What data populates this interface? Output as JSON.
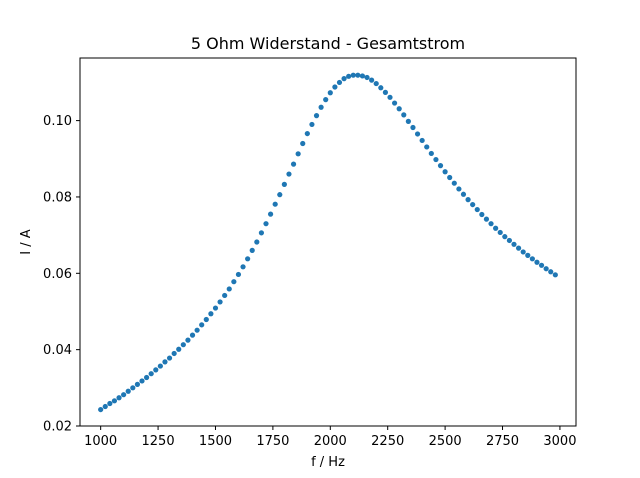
{
  "chart_data": {
    "type": "scatter",
    "title": "5 Ohm Widerstand - Gesamtstrom",
    "xlabel": "f / Hz",
    "ylabel": "I / A",
    "xlim": [
      910,
      3070
    ],
    "ylim": [
      0.02,
      0.1164
    ],
    "xticks": [
      1000,
      1250,
      1500,
      1750,
      2000,
      2250,
      2500,
      2750,
      3000
    ],
    "yticks": [
      0.02,
      0.04,
      0.06,
      0.08,
      0.1
    ],
    "xtick_labels": [
      "1000",
      "1250",
      "1500",
      "1750",
      "2000",
      "2250",
      "2500",
      "2750",
      "3000"
    ],
    "ytick_labels": [
      "0.02",
      "0.04",
      "0.06",
      "0.08",
      "0.10"
    ],
    "grid": false,
    "marker_color": "#1f77b4",
    "series": [
      {
        "x": [
          1000,
          1020,
          1040,
          1060,
          1080,
          1100,
          1120,
          1140,
          1160,
          1180,
          1200,
          1220,
          1240,
          1260,
          1280,
          1300,
          1320,
          1340,
          1360,
          1380,
          1400,
          1420,
          1440,
          1460,
          1480,
          1500,
          1520,
          1540,
          1560,
          1580,
          1600,
          1620,
          1640,
          1660,
          1680,
          1700,
          1720,
          1740,
          1760,
          1780,
          1800,
          1820,
          1840,
          1860,
          1880,
          1900,
          1920,
          1940,
          1960,
          1980,
          2000,
          2020,
          2040,
          2060,
          2080,
          2100,
          2120,
          2140,
          2160,
          2180,
          2200,
          2220,
          2240,
          2260,
          2280,
          2300,
          2320,
          2340,
          2360,
          2380,
          2400,
          2420,
          2440,
          2460,
          2480,
          2500,
          2520,
          2540,
          2560,
          2580,
          2600,
          2620,
          2640,
          2660,
          2680,
          2700,
          2720,
          2740,
          2760,
          2780,
          2800,
          2820,
          2840,
          2860,
          2880,
          2900,
          2920,
          2940,
          2960,
          2980
        ],
        "y": [
          0.0243,
          0.0251,
          0.0259,
          0.0266,
          0.0274,
          0.0282,
          0.0291,
          0.03,
          0.0309,
          0.0318,
          0.0327,
          0.0337,
          0.0347,
          0.0357,
          0.0368,
          0.0378,
          0.039,
          0.0401,
          0.0413,
          0.0425,
          0.0438,
          0.0451,
          0.0465,
          0.0479,
          0.0494,
          0.0509,
          0.0525,
          0.0542,
          0.0559,
          0.0578,
          0.0597,
          0.0617,
          0.0638,
          0.066,
          0.0682,
          0.0706,
          0.073,
          0.0755,
          0.0781,
          0.0806,
          0.0833,
          0.086,
          0.0886,
          0.0913,
          0.094,
          0.0966,
          0.099,
          0.1013,
          0.1035,
          0.1055,
          0.1073,
          0.1088,
          0.11,
          0.111,
          0.1116,
          0.1119,
          0.1119,
          0.1117,
          0.1113,
          0.1106,
          0.1097,
          0.1086,
          0.1074,
          0.1061,
          0.1046,
          0.1031,
          0.1015,
          0.0998,
          0.0982,
          0.0965,
          0.0948,
          0.0931,
          0.0914,
          0.0898,
          0.0882,
          0.0866,
          0.0851,
          0.0836,
          0.0821,
          0.0807,
          0.0793,
          0.078,
          0.0767,
          0.0754,
          0.0742,
          0.073,
          0.0718,
          0.0707,
          0.0696,
          0.0686,
          0.0676,
          0.0666,
          0.0656,
          0.0647,
          0.0638,
          0.0629,
          0.0621,
          0.0612,
          0.0604,
          0.0596
        ]
      }
    ]
  }
}
